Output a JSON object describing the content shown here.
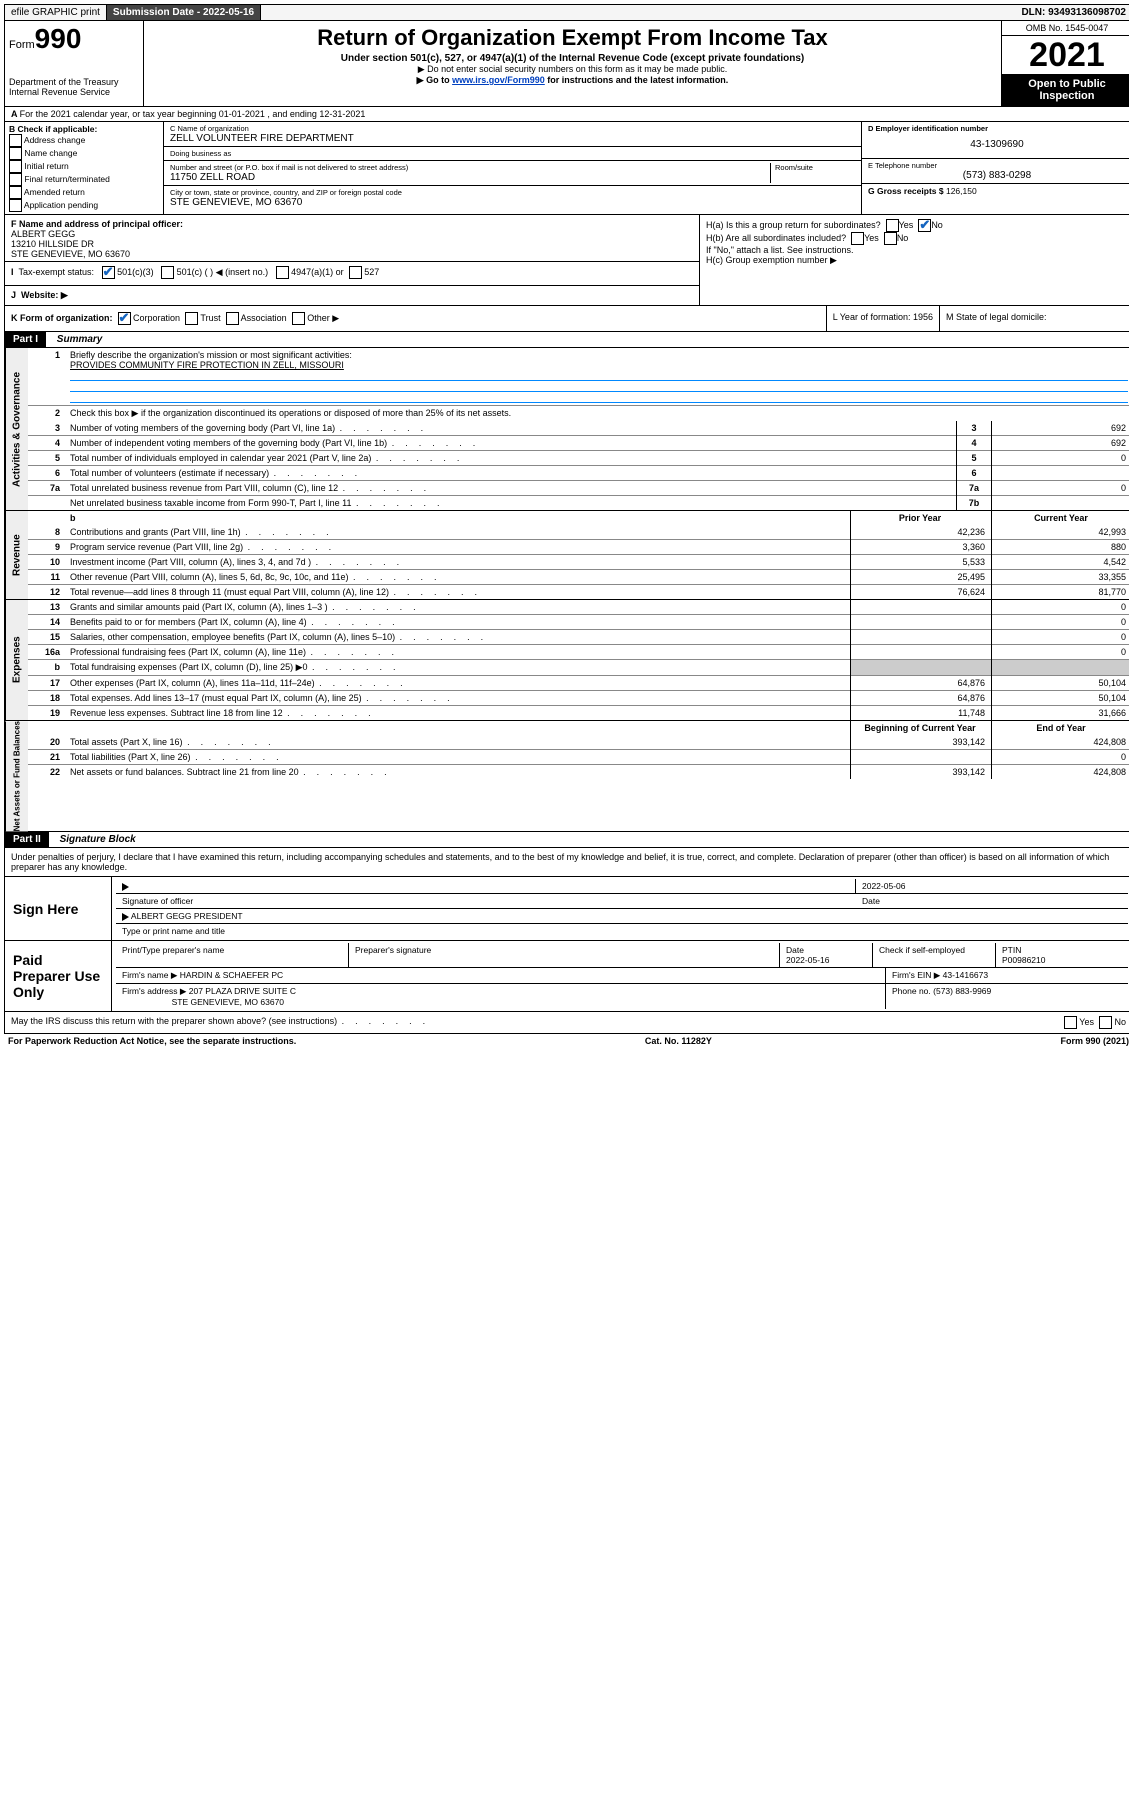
{
  "topbar": {
    "efile": "efile GRAPHIC print",
    "subdate_lbl": "Submission Date - ",
    "subdate": "2022-05-16",
    "dln_lbl": "DLN: ",
    "dln": "93493136098702"
  },
  "header": {
    "form_prefix": "Form",
    "form_no": "990",
    "dept": "Department of the Treasury",
    "irs": "Internal Revenue Service",
    "title": "Return of Organization Exempt From Income Tax",
    "sub": "Under section 501(c), 527, or 4947(a)(1) of the Internal Revenue Code (except private foundations)",
    "note1": "▶ Do not enter social security numbers on this form as it may be made public.",
    "note2_pre": "▶ Go to ",
    "note2_link": "www.irs.gov/Form990",
    "note2_post": " for instructions and the latest information.",
    "omb": "OMB No. 1545-0047",
    "year": "2021",
    "open": "Open to Public Inspection"
  },
  "A": "For the 2021 calendar year, or tax year beginning 01-01-2021 , and ending 12-31-2021",
  "B": {
    "title": "B Check if applicable:",
    "opts": [
      "Address change",
      "Name change",
      "Initial return",
      "Final return/terminated",
      "Amended return",
      "Application pending"
    ]
  },
  "C": {
    "name_lbl": "C Name of organization",
    "name": "ZELL VOLUNTEER FIRE DEPARTMENT",
    "dba_lbl": "Doing business as",
    "dba": "",
    "street_lbl": "Number and street (or P.O. box if mail is not delivered to street address)",
    "room_lbl": "Room/suite",
    "street": "11750 ZELL ROAD",
    "city_lbl": "City or town, state or province, country, and ZIP or foreign postal code",
    "city": "STE GENEVIEVE, MO  63670"
  },
  "D": {
    "lbl": "D Employer identification number",
    "val": "43-1309690"
  },
  "E": {
    "lbl": "E Telephone number",
    "val": "(573) 883-0298"
  },
  "G": {
    "lbl": "G Gross receipts $",
    "val": "126,150"
  },
  "F": {
    "lbl": "F Name and address of principal officer:",
    "name": "ALBERT GEGG",
    "addr1": "13210 HILLSIDE DR",
    "addr2": "STE GENEVIEVE, MO  63670"
  },
  "H": {
    "a": "H(a)  Is this a group return for subordinates?",
    "b": "H(b)  Are all subordinates included?",
    "b_note": "If \"No,\" attach a list. See instructions.",
    "c": "H(c)  Group exemption number ▶",
    "yes": "Yes",
    "no": "No"
  },
  "I": {
    "lbl": "Tax-exempt status:",
    "o1": "501(c)(3)",
    "o2": "501(c) (  ) ◀ (insert no.)",
    "o3": "4947(a)(1) or",
    "o4": "527"
  },
  "J": {
    "lbl": "Website: ▶",
    "val": ""
  },
  "K": {
    "lbl": "K Form of organization:",
    "o1": "Corporation",
    "o2": "Trust",
    "o3": "Association",
    "o4": "Other ▶"
  },
  "L": {
    "lbl": "L Year of formation: ",
    "val": "1956"
  },
  "M": {
    "lbl": "M State of legal domicile:",
    "val": ""
  },
  "parts": {
    "p1_hdr": "Part I",
    "p1_title": "Summary",
    "p2_hdr": "Part II",
    "p2_title": "Signature Block"
  },
  "summary": {
    "l1_lbl": "Briefly describe the organization's mission or most significant activities:",
    "l1_val": "PROVIDES COMMUNITY FIRE PROTECTION IN ZELL, MISSOURI",
    "l2": "Check this box ▶     if the organization discontinued its operations or disposed of more than 25% of its net assets.",
    "rows_gov": [
      {
        "n": "3",
        "t": "Number of voting members of the governing body (Part VI, line 1a)",
        "b": "3",
        "v": "692"
      },
      {
        "n": "4",
        "t": "Number of independent voting members of the governing body (Part VI, line 1b)",
        "b": "4",
        "v": "692"
      },
      {
        "n": "5",
        "t": "Total number of individuals employed in calendar year 2021 (Part V, line 2a)",
        "b": "5",
        "v": "0"
      },
      {
        "n": "6",
        "t": "Total number of volunteers (estimate if necessary)",
        "b": "6",
        "v": ""
      },
      {
        "n": "7a",
        "t": "Total unrelated business revenue from Part VIII, column (C), line 12",
        "b": "7a",
        "v": "0"
      },
      {
        "n": "",
        "t": "Net unrelated business taxable income from Form 990-T, Part I, line 11",
        "b": "7b",
        "v": ""
      }
    ],
    "prior_hdr": "Prior Year",
    "curr_hdr": "Current Year",
    "rows_rev": [
      {
        "n": "8",
        "t": "Contributions and grants (Part VIII, line 1h)",
        "p": "42,236",
        "c": "42,993"
      },
      {
        "n": "9",
        "t": "Program service revenue (Part VIII, line 2g)",
        "p": "3,360",
        "c": "880"
      },
      {
        "n": "10",
        "t": "Investment income (Part VIII, column (A), lines 3, 4, and 7d )",
        "p": "5,533",
        "c": "4,542"
      },
      {
        "n": "11",
        "t": "Other revenue (Part VIII, column (A), lines 5, 6d, 8c, 9c, 10c, and 11e)",
        "p": "25,495",
        "c": "33,355"
      },
      {
        "n": "12",
        "t": "Total revenue—add lines 8 through 11 (must equal Part VIII, column (A), line 12)",
        "p": "76,624",
        "c": "81,770"
      }
    ],
    "rows_exp": [
      {
        "n": "13",
        "t": "Grants and similar amounts paid (Part IX, column (A), lines 1–3 )",
        "p": "",
        "c": "0"
      },
      {
        "n": "14",
        "t": "Benefits paid to or for members (Part IX, column (A), line 4)",
        "p": "",
        "c": "0"
      },
      {
        "n": "15",
        "t": "Salaries, other compensation, employee benefits (Part IX, column (A), lines 5–10)",
        "p": "",
        "c": "0"
      },
      {
        "n": "16a",
        "t": "Professional fundraising fees (Part IX, column (A), line 11e)",
        "p": "",
        "c": "0"
      },
      {
        "n": "b",
        "t": "Total fundraising expenses (Part IX, column (D), line 25) ▶0",
        "p": "SHADE",
        "c": "SHADE"
      },
      {
        "n": "17",
        "t": "Other expenses (Part IX, column (A), lines 11a–11d, 11f–24e)",
        "p": "64,876",
        "c": "50,104"
      },
      {
        "n": "18",
        "t": "Total expenses. Add lines 13–17 (must equal Part IX, column (A), line 25)",
        "p": "64,876",
        "c": "50,104"
      },
      {
        "n": "19",
        "t": "Revenue less expenses. Subtract line 18 from line 12",
        "p": "11,748",
        "c": "31,666"
      }
    ],
    "beg_hdr": "Beginning of Current Year",
    "end_hdr": "End of Year",
    "rows_net": [
      {
        "n": "20",
        "t": "Total assets (Part X, line 16)",
        "p": "393,142",
        "c": "424,808"
      },
      {
        "n": "21",
        "t": "Total liabilities (Part X, line 26)",
        "p": "",
        "c": "0"
      },
      {
        "n": "22",
        "t": "Net assets or fund balances. Subtract line 21 from line 20",
        "p": "393,142",
        "c": "424,808"
      }
    ],
    "side_gov": "Activities & Governance",
    "side_rev": "Revenue",
    "side_exp": "Expenses",
    "side_net": "Net Assets or Fund Balances"
  },
  "sig": {
    "penalties": "Under penalties of perjury, I declare that I have examined this return, including accompanying schedules and statements, and to the best of my knowledge and belief, it is true, correct, and complete. Declaration of preparer (other than officer) is based on all information of which preparer has any knowledge.",
    "sign_here": "Sign Here",
    "sig_officer_lbl": "Signature of officer",
    "date_lbl": "Date",
    "sig_date": "2022-05-06",
    "name_title": "ALBERT GEGG  PRESIDENT",
    "name_title_lbl": "Type or print name and title",
    "paid": "Paid Preparer Use Only",
    "prep_name_lbl": "Print/Type preparer's name",
    "prep_sig_lbl": "Preparer's signature",
    "prep_date_lbl": "Date",
    "prep_date": "2022-05-16",
    "check_if": "Check     if self-employed",
    "ptin_lbl": "PTIN",
    "ptin": "P00986210",
    "firm_name_lbl": "Firm's name    ▶",
    "firm_name": "HARDIN & SCHAEFER PC",
    "firm_ein_lbl": "Firm's EIN ▶",
    "firm_ein": "43-1416673",
    "firm_addr_lbl": "Firm's address ▶",
    "firm_addr1": "207 PLAZA DRIVE SUITE C",
    "firm_addr2": "STE GENEVIEVE, MO  63670",
    "phone_lbl": "Phone no.",
    "phone": "(573) 883-9969",
    "may_irs": "May the IRS discuss this return with the preparer shown above? (see instructions)"
  },
  "footer": {
    "l": "For Paperwork Reduction Act Notice, see the separate instructions.",
    "c": "Cat. No. 11282Y",
    "r": "Form 990 (2021)"
  }
}
